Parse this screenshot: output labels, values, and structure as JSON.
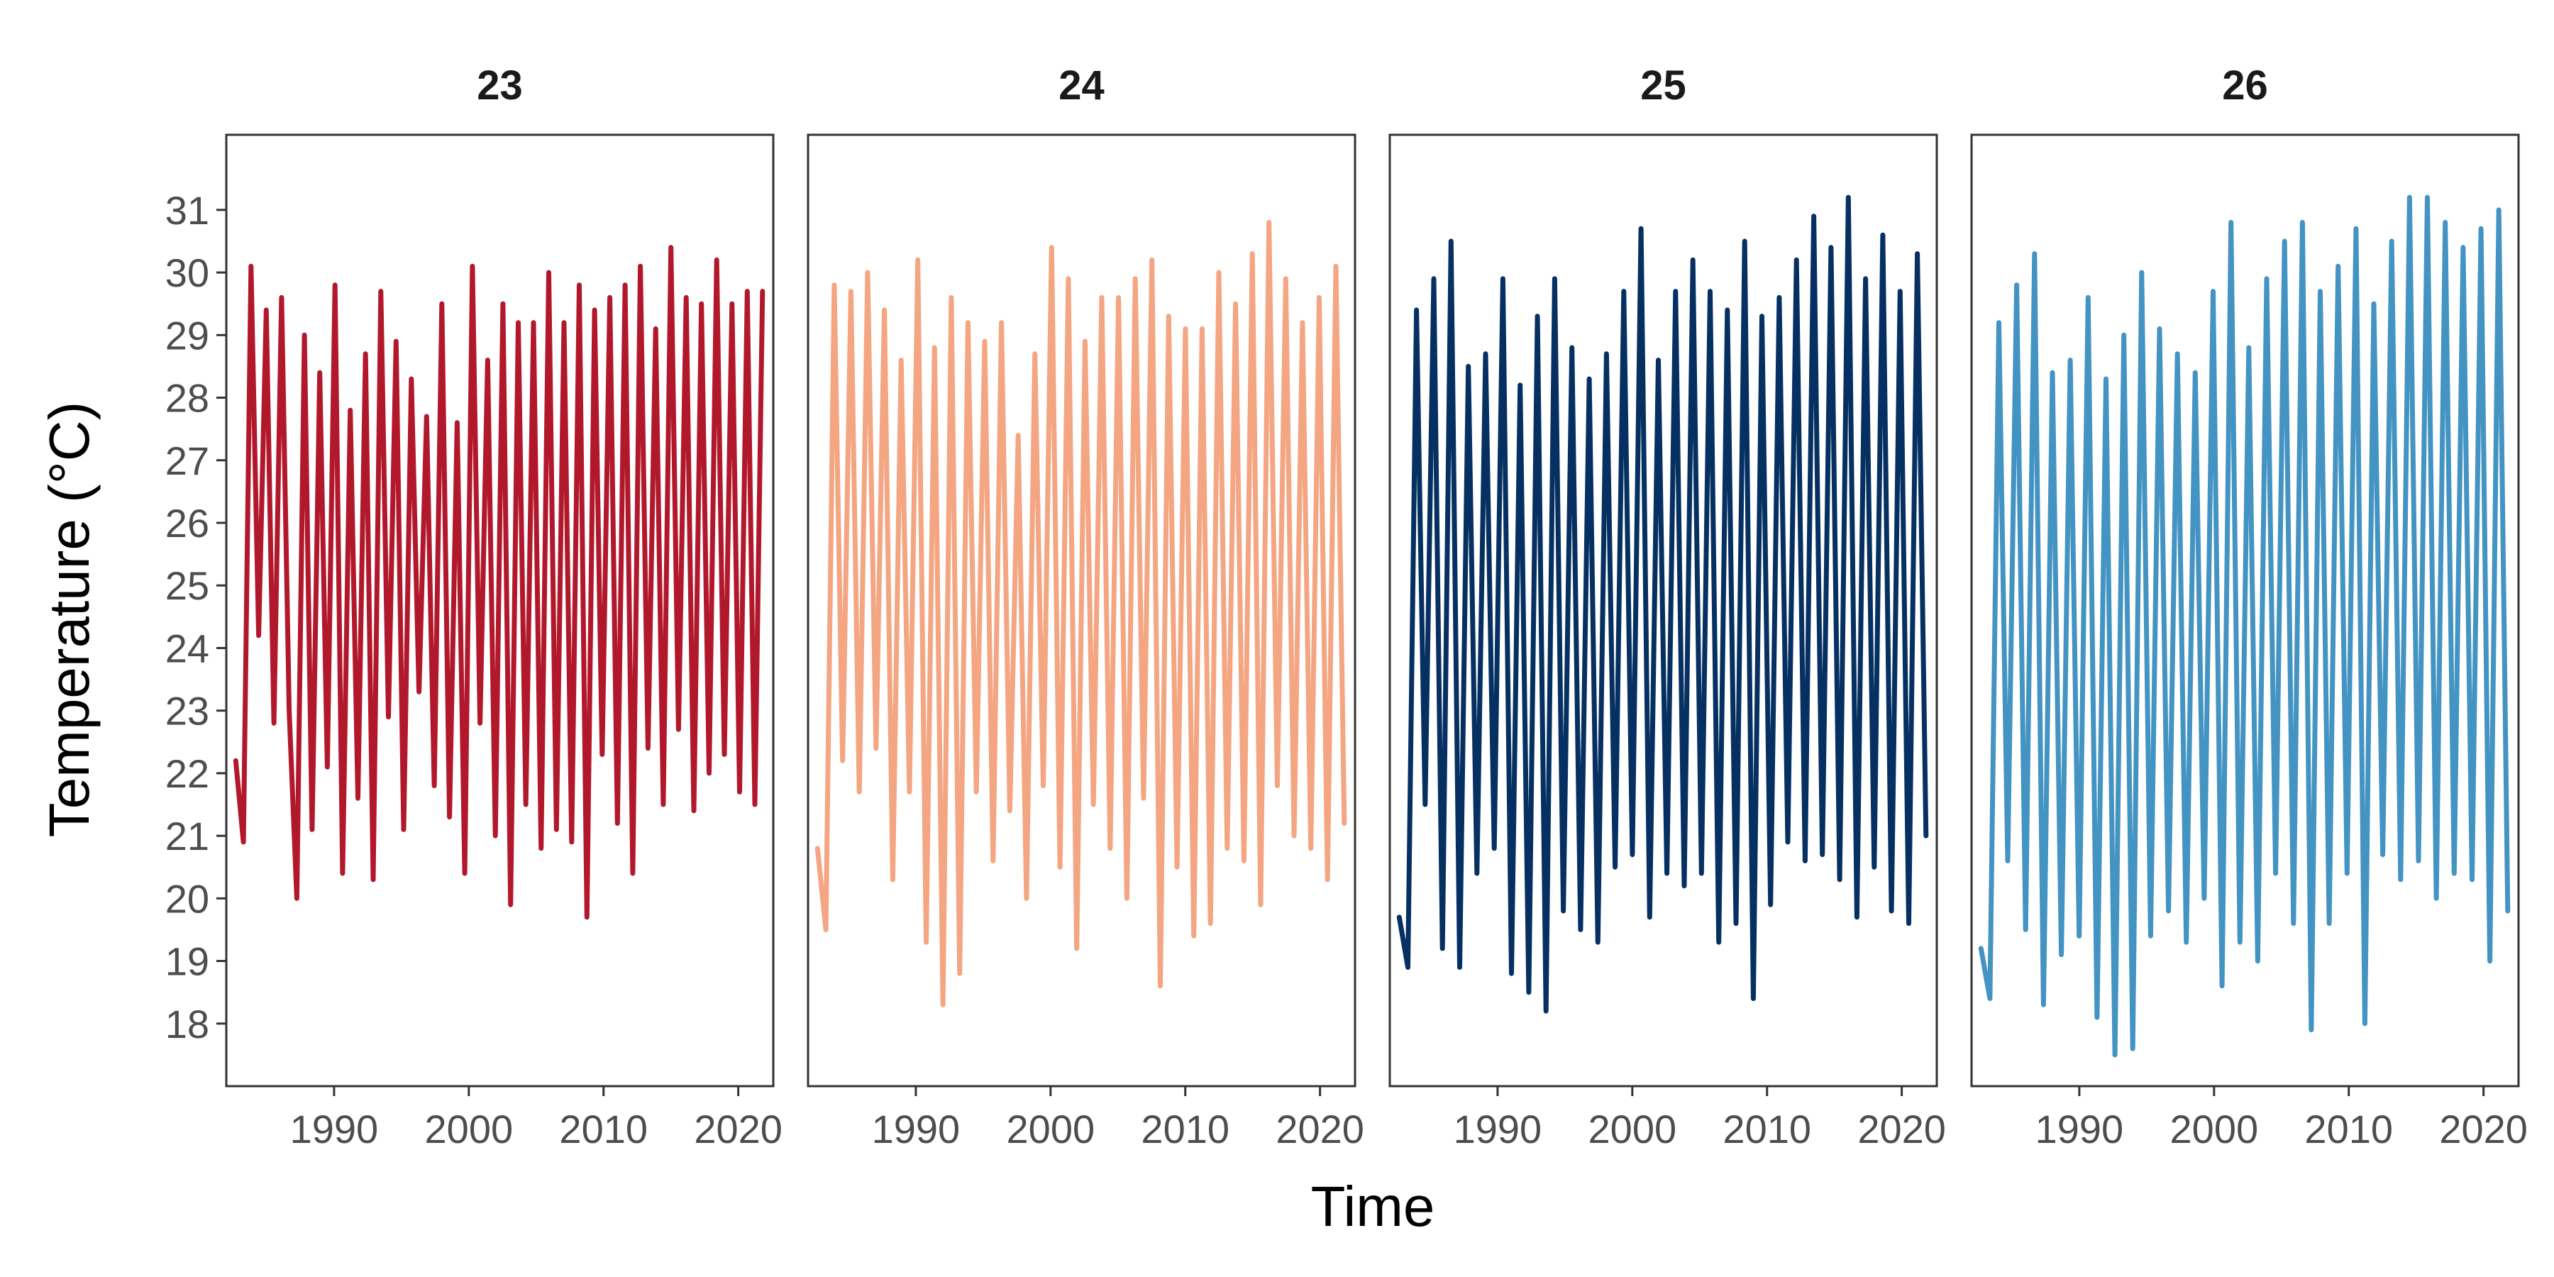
{
  "chart_data": {
    "type": "line",
    "xlabel": "Time",
    "ylabel": "Temperature (°C)",
    "ylim": [
      17,
      32.2
    ],
    "xlim": [
      1982,
      2022.6
    ],
    "y_ticks": [
      18,
      19,
      20,
      21,
      22,
      23,
      24,
      25,
      26,
      27,
      28,
      29,
      30,
      31
    ],
    "x_ticks": [
      1990,
      2000,
      2010,
      2020
    ],
    "grid": false,
    "legend": "none",
    "x_start": 1982.7,
    "x_end": 2021.8,
    "panels": [
      {
        "title": "23",
        "color": "#b2182b",
        "values": [
          22.2,
          20.9,
          30.1,
          24.2,
          29.4,
          22.8,
          29.6,
          23.0,
          20.0,
          29.0,
          21.1,
          28.4,
          22.1,
          29.8,
          20.4,
          27.8,
          21.6,
          28.7,
          20.3,
          29.7,
          22.9,
          28.9,
          21.1,
          28.3,
          23.3,
          27.7,
          21.8,
          29.5,
          21.3,
          27.6,
          20.4,
          30.1,
          22.8,
          28.6,
          21.0,
          29.5,
          19.9,
          29.2,
          21.5,
          29.2,
          20.8,
          30.0,
          21.1,
          29.2,
          20.9,
          29.8,
          19.7,
          29.4,
          22.3,
          29.6,
          21.2,
          29.8,
          20.4,
          30.1,
          22.4,
          29.1,
          21.5,
          30.4,
          22.7,
          29.6,
          21.4,
          29.5,
          22.0,
          30.2,
          22.3,
          29.5,
          21.7,
          29.7,
          21.5,
          29.7
        ]
      },
      {
        "title": "24",
        "color": "#f4a582",
        "values": [
          20.8,
          19.5,
          29.8,
          22.2,
          29.7,
          21.7,
          30.0,
          22.4,
          29.4,
          20.3,
          28.6,
          21.7,
          30.2,
          19.3,
          28.8,
          18.3,
          29.6,
          18.8,
          29.2,
          21.7,
          28.9,
          20.6,
          29.2,
          21.4,
          27.4,
          20.0,
          28.7,
          21.8,
          30.4,
          20.5,
          29.9,
          19.2,
          28.9,
          21.5,
          29.6,
          20.8,
          29.6,
          20.0,
          29.9,
          21.6,
          30.2,
          18.6,
          29.3,
          20.5,
          29.1,
          19.4,
          29.1,
          19.6,
          30.0,
          20.8,
          29.5,
          20.6,
          30.3,
          19.9,
          30.8,
          21.8,
          29.9,
          21.0,
          29.2,
          20.8,
          29.6,
          20.3,
          30.1,
          21.2
        ]
      },
      {
        "title": "25",
        "color": "#053061",
        "values": [
          19.7,
          18.9,
          29.4,
          21.5,
          29.9,
          19.2,
          30.5,
          18.9,
          28.5,
          20.4,
          28.7,
          20.8,
          29.9,
          18.8,
          28.2,
          18.5,
          29.3,
          18.2,
          29.9,
          19.8,
          28.8,
          19.5,
          28.3,
          19.3,
          28.7,
          20.5,
          29.7,
          20.7,
          30.7,
          19.7,
          28.6,
          20.4,
          29.7,
          20.2,
          30.2,
          20.4,
          29.7,
          19.3,
          29.4,
          19.6,
          30.5,
          18.4,
          29.3,
          19.9,
          29.6,
          20.9,
          30.2,
          20.6,
          30.9,
          20.7,
          30.4,
          20.3,
          31.2,
          19.7,
          29.9,
          20.5,
          30.6,
          19.8,
          29.7,
          19.6,
          30.3,
          21.0
        ]
      },
      {
        "title": "26",
        "color": "#4393c3",
        "values": [
          19.2,
          18.4,
          29.2,
          20.6,
          29.8,
          19.5,
          30.3,
          18.3,
          28.4,
          19.1,
          28.6,
          19.4,
          29.6,
          18.1,
          28.3,
          17.5,
          29.0,
          17.6,
          30.0,
          19.4,
          29.1,
          19.8,
          28.7,
          19.3,
          28.4,
          20.0,
          29.7,
          18.6,
          30.8,
          19.3,
          28.8,
          19.0,
          29.9,
          20.4,
          30.5,
          19.6,
          30.8,
          17.9,
          29.7,
          19.6,
          30.1,
          20.4,
          30.7,
          18.0,
          29.5,
          20.7,
          30.5,
          20.3,
          31.2,
          20.6,
          31.2,
          20.0,
          30.8,
          20.4,
          30.4,
          20.3,
          30.7,
          19.0,
          31.0,
          19.8
        ]
      }
    ]
  }
}
